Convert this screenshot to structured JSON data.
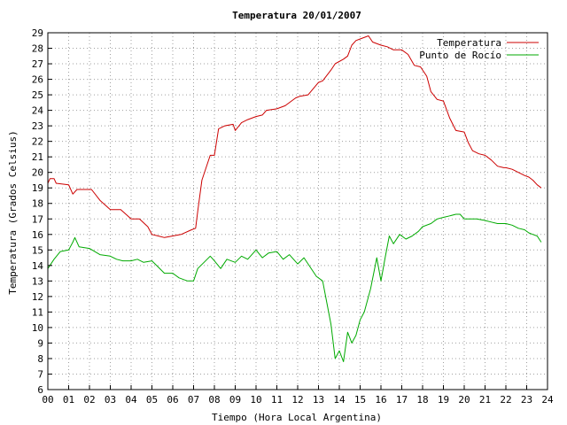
{
  "chart_data": {
    "type": "line",
    "title": "Temperatura 20/01/2007",
    "xlabel": "Tiempo (Hora Local Argentina)",
    "ylabel": "Temperatura (Grados Celsius)",
    "xlim": [
      0,
      24
    ],
    "ylim": [
      6,
      29
    ],
    "x_tick_labels": [
      "00",
      "01",
      "02",
      "03",
      "04",
      "05",
      "06",
      "07",
      "08",
      "09",
      "10",
      "11",
      "12",
      "13",
      "14",
      "15",
      "16",
      "17",
      "18",
      "19",
      "20",
      "21",
      "22",
      "23",
      "24"
    ],
    "y_ticks": [
      6,
      7,
      8,
      9,
      10,
      11,
      12,
      13,
      14,
      15,
      16,
      17,
      18,
      19,
      20,
      21,
      22,
      23,
      24,
      25,
      26,
      27,
      28,
      29
    ],
    "grid": true,
    "legend_position": "top-right",
    "series": [
      {
        "name": "Temperatura",
        "color": "#cc0000",
        "x": [
          0,
          0.1,
          0.3,
          0.4,
          1.0,
          1.2,
          1.4,
          2.1,
          2.5,
          3.0,
          3.5,
          4.0,
          4.2,
          4.4,
          4.8,
          5.0,
          5.3,
          5.6,
          6.0,
          6.4,
          6.9,
          7.1,
          7.2,
          7.4,
          7.8,
          8.0,
          8.2,
          8.5,
          8.9,
          9.0,
          9.3,
          9.6,
          10.0,
          10.3,
          10.5,
          11.0,
          11.4,
          11.9,
          12.1,
          12.5,
          13.0,
          13.2,
          13.6,
          13.8,
          14.2,
          14.4,
          14.6,
          14.8,
          15.0,
          15.4,
          15.6,
          16.0,
          16.3,
          16.6,
          17.0,
          17.3,
          17.6,
          17.9,
          18.2,
          18.4,
          18.7,
          19.0,
          19.3,
          19.6,
          20.0,
          20.2,
          20.4,
          20.7,
          21.0,
          21.3,
          21.6,
          21.9,
          22.0,
          22.3,
          22.6,
          22.9,
          23.1,
          23.3,
          23.5,
          23.7
        ],
        "y": [
          19.3,
          19.6,
          19.6,
          19.3,
          19.2,
          18.6,
          18.9,
          18.9,
          18.2,
          17.6,
          17.6,
          17.0,
          17.0,
          17.0,
          16.5,
          16.0,
          15.9,
          15.8,
          15.9,
          16.0,
          16.3,
          16.4,
          17.5,
          19.5,
          21.1,
          21.1,
          22.8,
          23.0,
          23.1,
          22.7,
          23.2,
          23.4,
          23.6,
          23.7,
          24.0,
          24.1,
          24.3,
          24.8,
          24.9,
          25.0,
          25.8,
          25.9,
          26.6,
          27.0,
          27.3,
          27.5,
          28.2,
          28.5,
          28.6,
          28.8,
          28.4,
          28.2,
          28.1,
          27.9,
          27.9,
          27.6,
          26.9,
          26.8,
          26.2,
          25.2,
          24.7,
          24.6,
          23.5,
          22.7,
          22.6,
          21.9,
          21.4,
          21.2,
          21.1,
          20.8,
          20.4,
          20.3,
          20.3,
          20.2,
          20.0,
          19.8,
          19.7,
          19.5,
          19.2,
          19.0
        ]
      },
      {
        "name": "Punto de Rocío",
        "color": "#00aa00",
        "x": [
          0,
          0.3,
          0.6,
          1.0,
          1.2,
          1.3,
          1.5,
          2.0,
          2.5,
          3.0,
          3.3,
          3.6,
          4.0,
          4.3,
          4.6,
          5.0,
          5.3,
          5.6,
          6.0,
          6.3,
          6.7,
          7.0,
          7.2,
          7.5,
          7.8,
          8.0,
          8.3,
          8.6,
          9.0,
          9.3,
          9.6,
          10.0,
          10.3,
          10.6,
          11.0,
          11.3,
          11.6,
          12.0,
          12.3,
          12.6,
          12.9,
          13.2,
          13.4,
          13.6,
          13.8,
          14.0,
          14.2,
          14.4,
          14.6,
          14.8,
          15.0,
          15.2,
          15.5,
          15.8,
          16.0,
          16.2,
          16.4,
          16.6,
          16.9,
          17.2,
          17.5,
          17.8,
          18.0,
          18.4,
          18.7,
          19.0,
          19.3,
          19.6,
          19.8,
          20.0,
          20.3,
          20.6,
          21.0,
          21.3,
          21.6,
          22.0,
          22.3,
          22.6,
          22.9,
          23.1,
          23.3,
          23.5,
          23.6,
          23.7
        ],
        "y": [
          13.8,
          14.4,
          14.9,
          15.0,
          15.5,
          15.8,
          15.2,
          15.1,
          14.7,
          14.6,
          14.4,
          14.3,
          14.3,
          14.4,
          14.2,
          14.3,
          13.9,
          13.5,
          13.5,
          13.2,
          13.0,
          13.0,
          13.8,
          14.2,
          14.6,
          14.3,
          13.8,
          14.4,
          14.2,
          14.6,
          14.4,
          15.0,
          14.5,
          14.8,
          14.9,
          14.4,
          14.7,
          14.1,
          14.5,
          13.9,
          13.3,
          13.0,
          11.6,
          10.2,
          8.0,
          8.5,
          7.8,
          9.7,
          9.0,
          9.5,
          10.5,
          11.0,
          12.5,
          14.5,
          13.0,
          14.5,
          15.9,
          15.4,
          16.0,
          15.7,
          15.9,
          16.2,
          16.5,
          16.7,
          17.0,
          17.1,
          17.2,
          17.3,
          17.3,
          17.0,
          17.0,
          17.0,
          16.9,
          16.8,
          16.7,
          16.7,
          16.6,
          16.4,
          16.3,
          16.1,
          16.0,
          15.9,
          15.7,
          15.5
        ]
      }
    ]
  }
}
